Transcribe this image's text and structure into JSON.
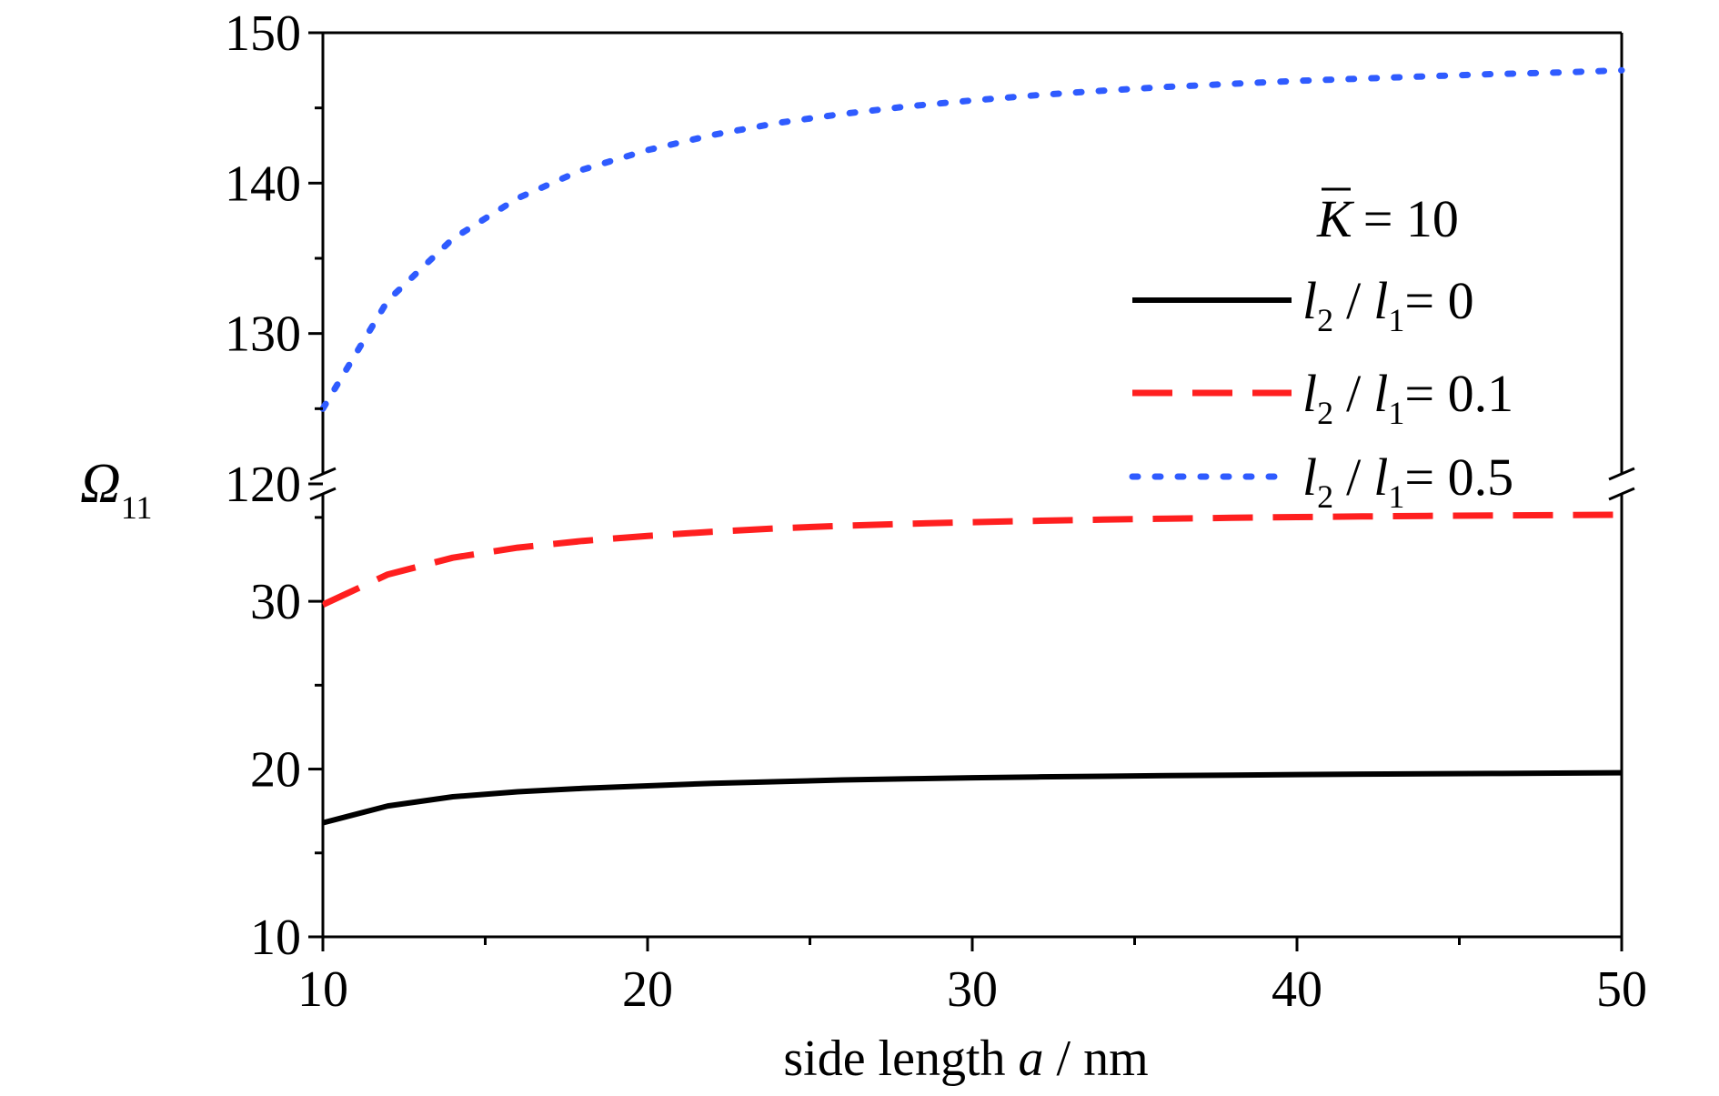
{
  "chart_data": {
    "type": "line",
    "xlabel": {
      "prefix": "side length ",
      "var": "a",
      "suffix": " / nm"
    },
    "ylabel": {
      "symbol": "Ω",
      "sub": "11"
    },
    "xlim": [
      10,
      50
    ],
    "xticks": [
      10,
      20,
      30,
      40,
      50
    ],
    "y_broken_axis": true,
    "y_lower_range": [
      10,
      37
    ],
    "y_upper_range": [
      120,
      150
    ],
    "yticks_lower": [
      10,
      20,
      30
    ],
    "yticks_upper": [
      120,
      130,
      140,
      150
    ],
    "legend_header": {
      "symbol": "K",
      "text": "= 10"
    },
    "legend_position": "right",
    "grid": false,
    "x": [
      10,
      12,
      14,
      16,
      18,
      20,
      22,
      24,
      26,
      28,
      30,
      32,
      34,
      36,
      38,
      40,
      42,
      44,
      46,
      48,
      50
    ],
    "series": [
      {
        "name": "0",
        "color": "#000000",
        "dash": "solid",
        "values": [
          16.8,
          17.8,
          18.35,
          18.65,
          18.85,
          19.0,
          19.15,
          19.25,
          19.35,
          19.42,
          19.48,
          19.53,
          19.57,
          19.61,
          19.64,
          19.67,
          19.7,
          19.72,
          19.74,
          19.76,
          19.78
        ]
      },
      {
        "name": "0.1",
        "color": "#ff1f1f",
        "dash": "dashed",
        "values": [
          29.8,
          31.6,
          32.6,
          33.2,
          33.6,
          33.9,
          34.15,
          34.35,
          34.5,
          34.62,
          34.72,
          34.8,
          34.87,
          34.93,
          34.98,
          35.02,
          35.06,
          35.09,
          35.12,
          35.14,
          35.16
        ]
      },
      {
        "name": "0.5",
        "color": "#2f5bff",
        "dash": "dotted",
        "values": [
          125.0,
          132.2,
          136.3,
          139.0,
          140.9,
          142.2,
          143.2,
          144.0,
          144.6,
          145.1,
          145.5,
          145.85,
          146.15,
          146.4,
          146.6,
          146.8,
          146.95,
          147.1,
          147.25,
          147.35,
          147.5
        ]
      }
    ]
  }
}
